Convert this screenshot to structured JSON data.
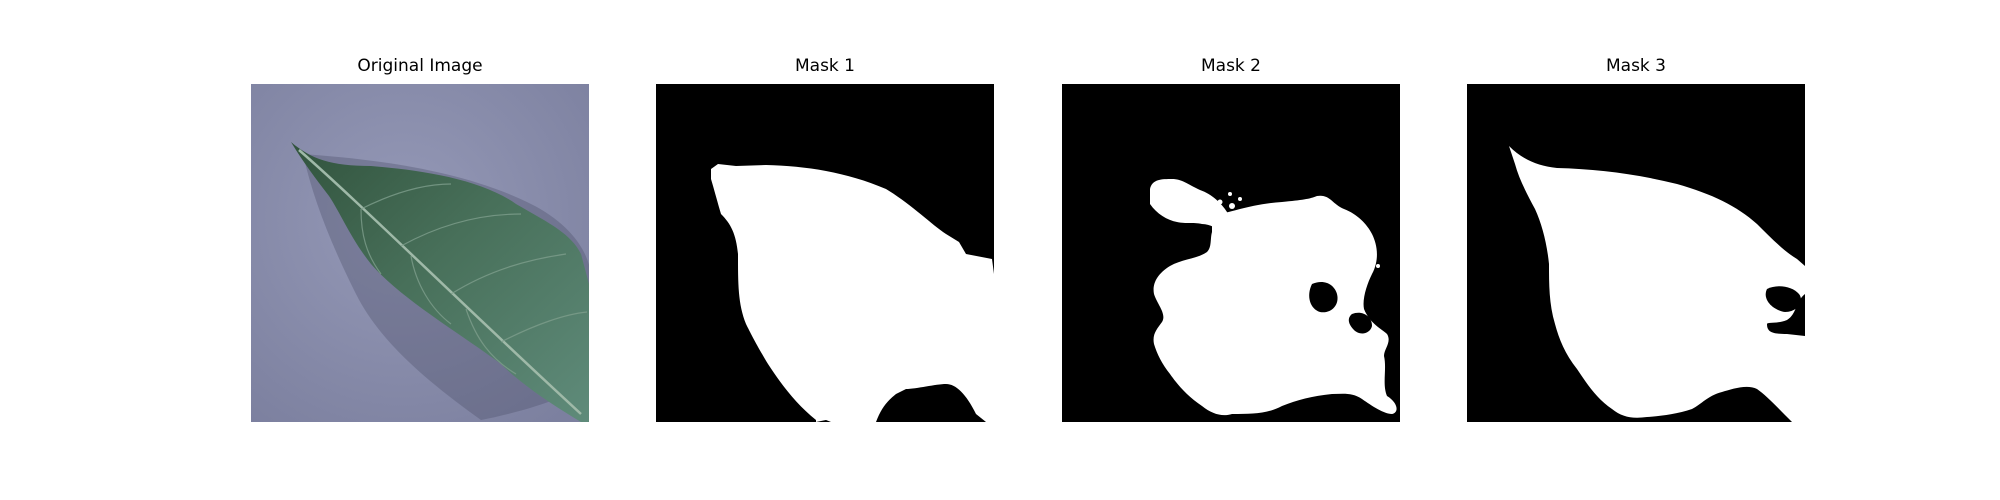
{
  "figure": {
    "panels": [
      {
        "title": "Original Image"
      },
      {
        "title": "Mask 1"
      },
      {
        "title": "Mask 2"
      },
      {
        "title": "Mask 3"
      }
    ]
  },
  "colors": {
    "background": "#ffffff",
    "mask_foreground": "#ffffff",
    "mask_background": "#000000",
    "paper_background": "#8a8fae",
    "leaf": "#3f5f4a"
  }
}
